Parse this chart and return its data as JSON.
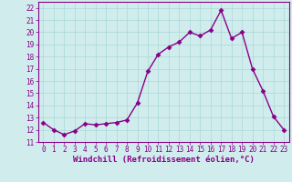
{
  "x": [
    0,
    1,
    2,
    3,
    4,
    5,
    6,
    7,
    8,
    9,
    10,
    11,
    12,
    13,
    14,
    15,
    16,
    17,
    18,
    19,
    20,
    21,
    22,
    23
  ],
  "y": [
    12.6,
    12.0,
    11.6,
    11.9,
    12.5,
    12.4,
    12.5,
    12.6,
    12.8,
    14.2,
    16.8,
    18.2,
    18.8,
    19.2,
    20.0,
    19.7,
    20.2,
    21.8,
    19.5,
    20.0,
    17.0,
    15.2,
    13.1,
    12.0
  ],
  "line_color": "#880088",
  "marker": "D",
  "marker_size": 2.5,
  "background_color": "#d0ecec",
  "grid_color": "#aad8d8",
  "xlabel": "Windchill (Refroidissement éolien,°C)",
  "ylim": [
    11,
    22.5
  ],
  "xlim": [
    -0.5,
    23.5
  ],
  "yticks": [
    11,
    12,
    13,
    14,
    15,
    16,
    17,
    18,
    19,
    20,
    21,
    22
  ],
  "xticks": [
    0,
    1,
    2,
    3,
    4,
    5,
    6,
    7,
    8,
    9,
    10,
    11,
    12,
    13,
    14,
    15,
    16,
    17,
    18,
    19,
    20,
    21,
    22,
    23
  ],
  "tick_fontsize": 5.5,
  "xlabel_fontsize": 6.5,
  "label_color": "#880088",
  "spine_color": "#880088",
  "linewidth": 1.0
}
